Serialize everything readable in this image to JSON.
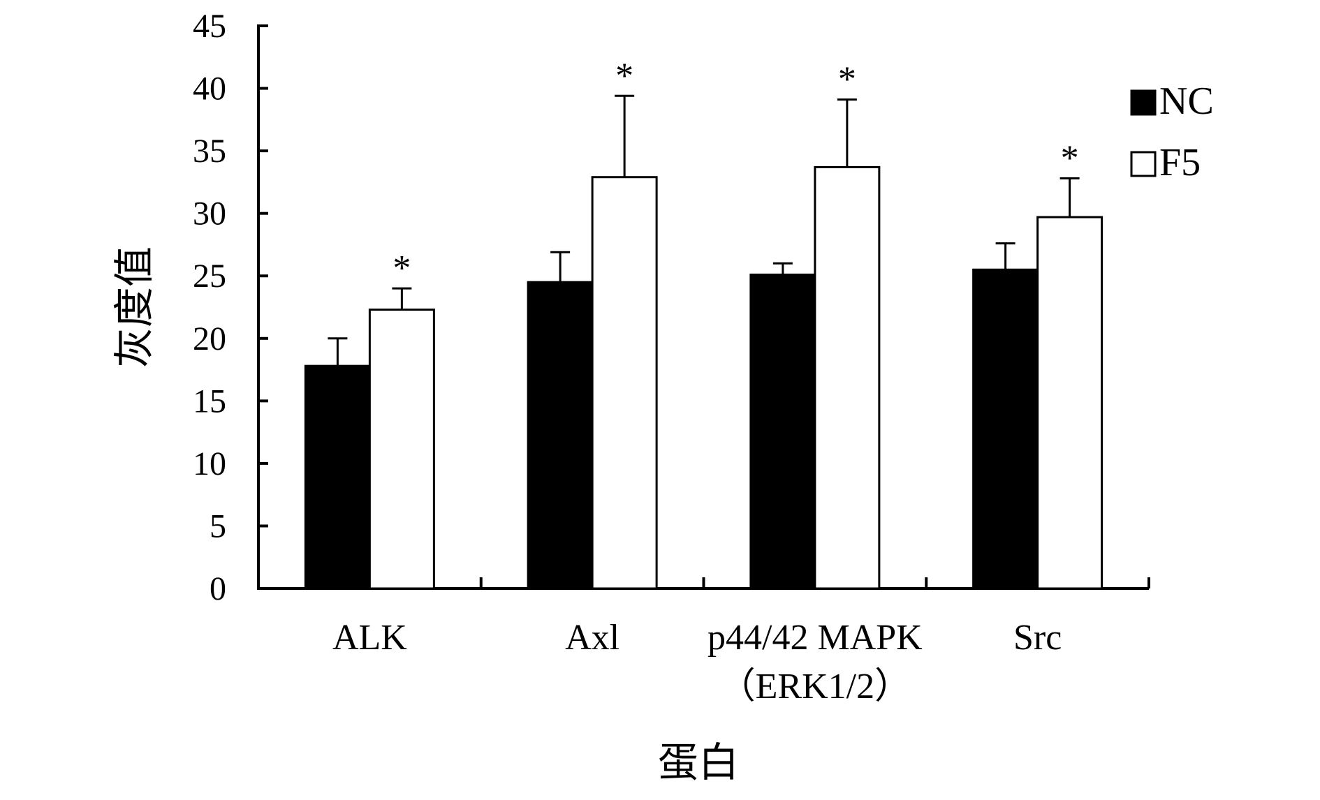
{
  "chart_data": {
    "type": "bar",
    "xlabel": "蛋白",
    "ylabel": "灰度值",
    "ylim": [
      0,
      45
    ],
    "yticks": [
      0,
      5,
      10,
      15,
      20,
      25,
      30,
      35,
      40,
      45
    ],
    "grid": false,
    "legend_position": "top-right",
    "categories": [
      {
        "lines": [
          "ALK"
        ]
      },
      {
        "lines": [
          "Axl"
        ]
      },
      {
        "lines": [
          "p44/42 MAPK",
          "（ERK1/2）"
        ]
      },
      {
        "lines": [
          "Src"
        ]
      }
    ],
    "series": [
      {
        "name": "NC",
        "fill": "#000000",
        "values": [
          17.8,
          24.5,
          25.1,
          25.5
        ],
        "error": [
          2.2,
          2.4,
          0.9,
          2.1
        ],
        "significance": [
          "",
          "",
          "",
          ""
        ]
      },
      {
        "name": "F5",
        "fill": "#ffffff",
        "values": [
          22.3,
          32.9,
          33.7,
          29.7
        ],
        "error": [
          1.7,
          6.5,
          5.4,
          3.1
        ],
        "significance": [
          "*",
          "*",
          "*",
          "*"
        ]
      }
    ]
  }
}
